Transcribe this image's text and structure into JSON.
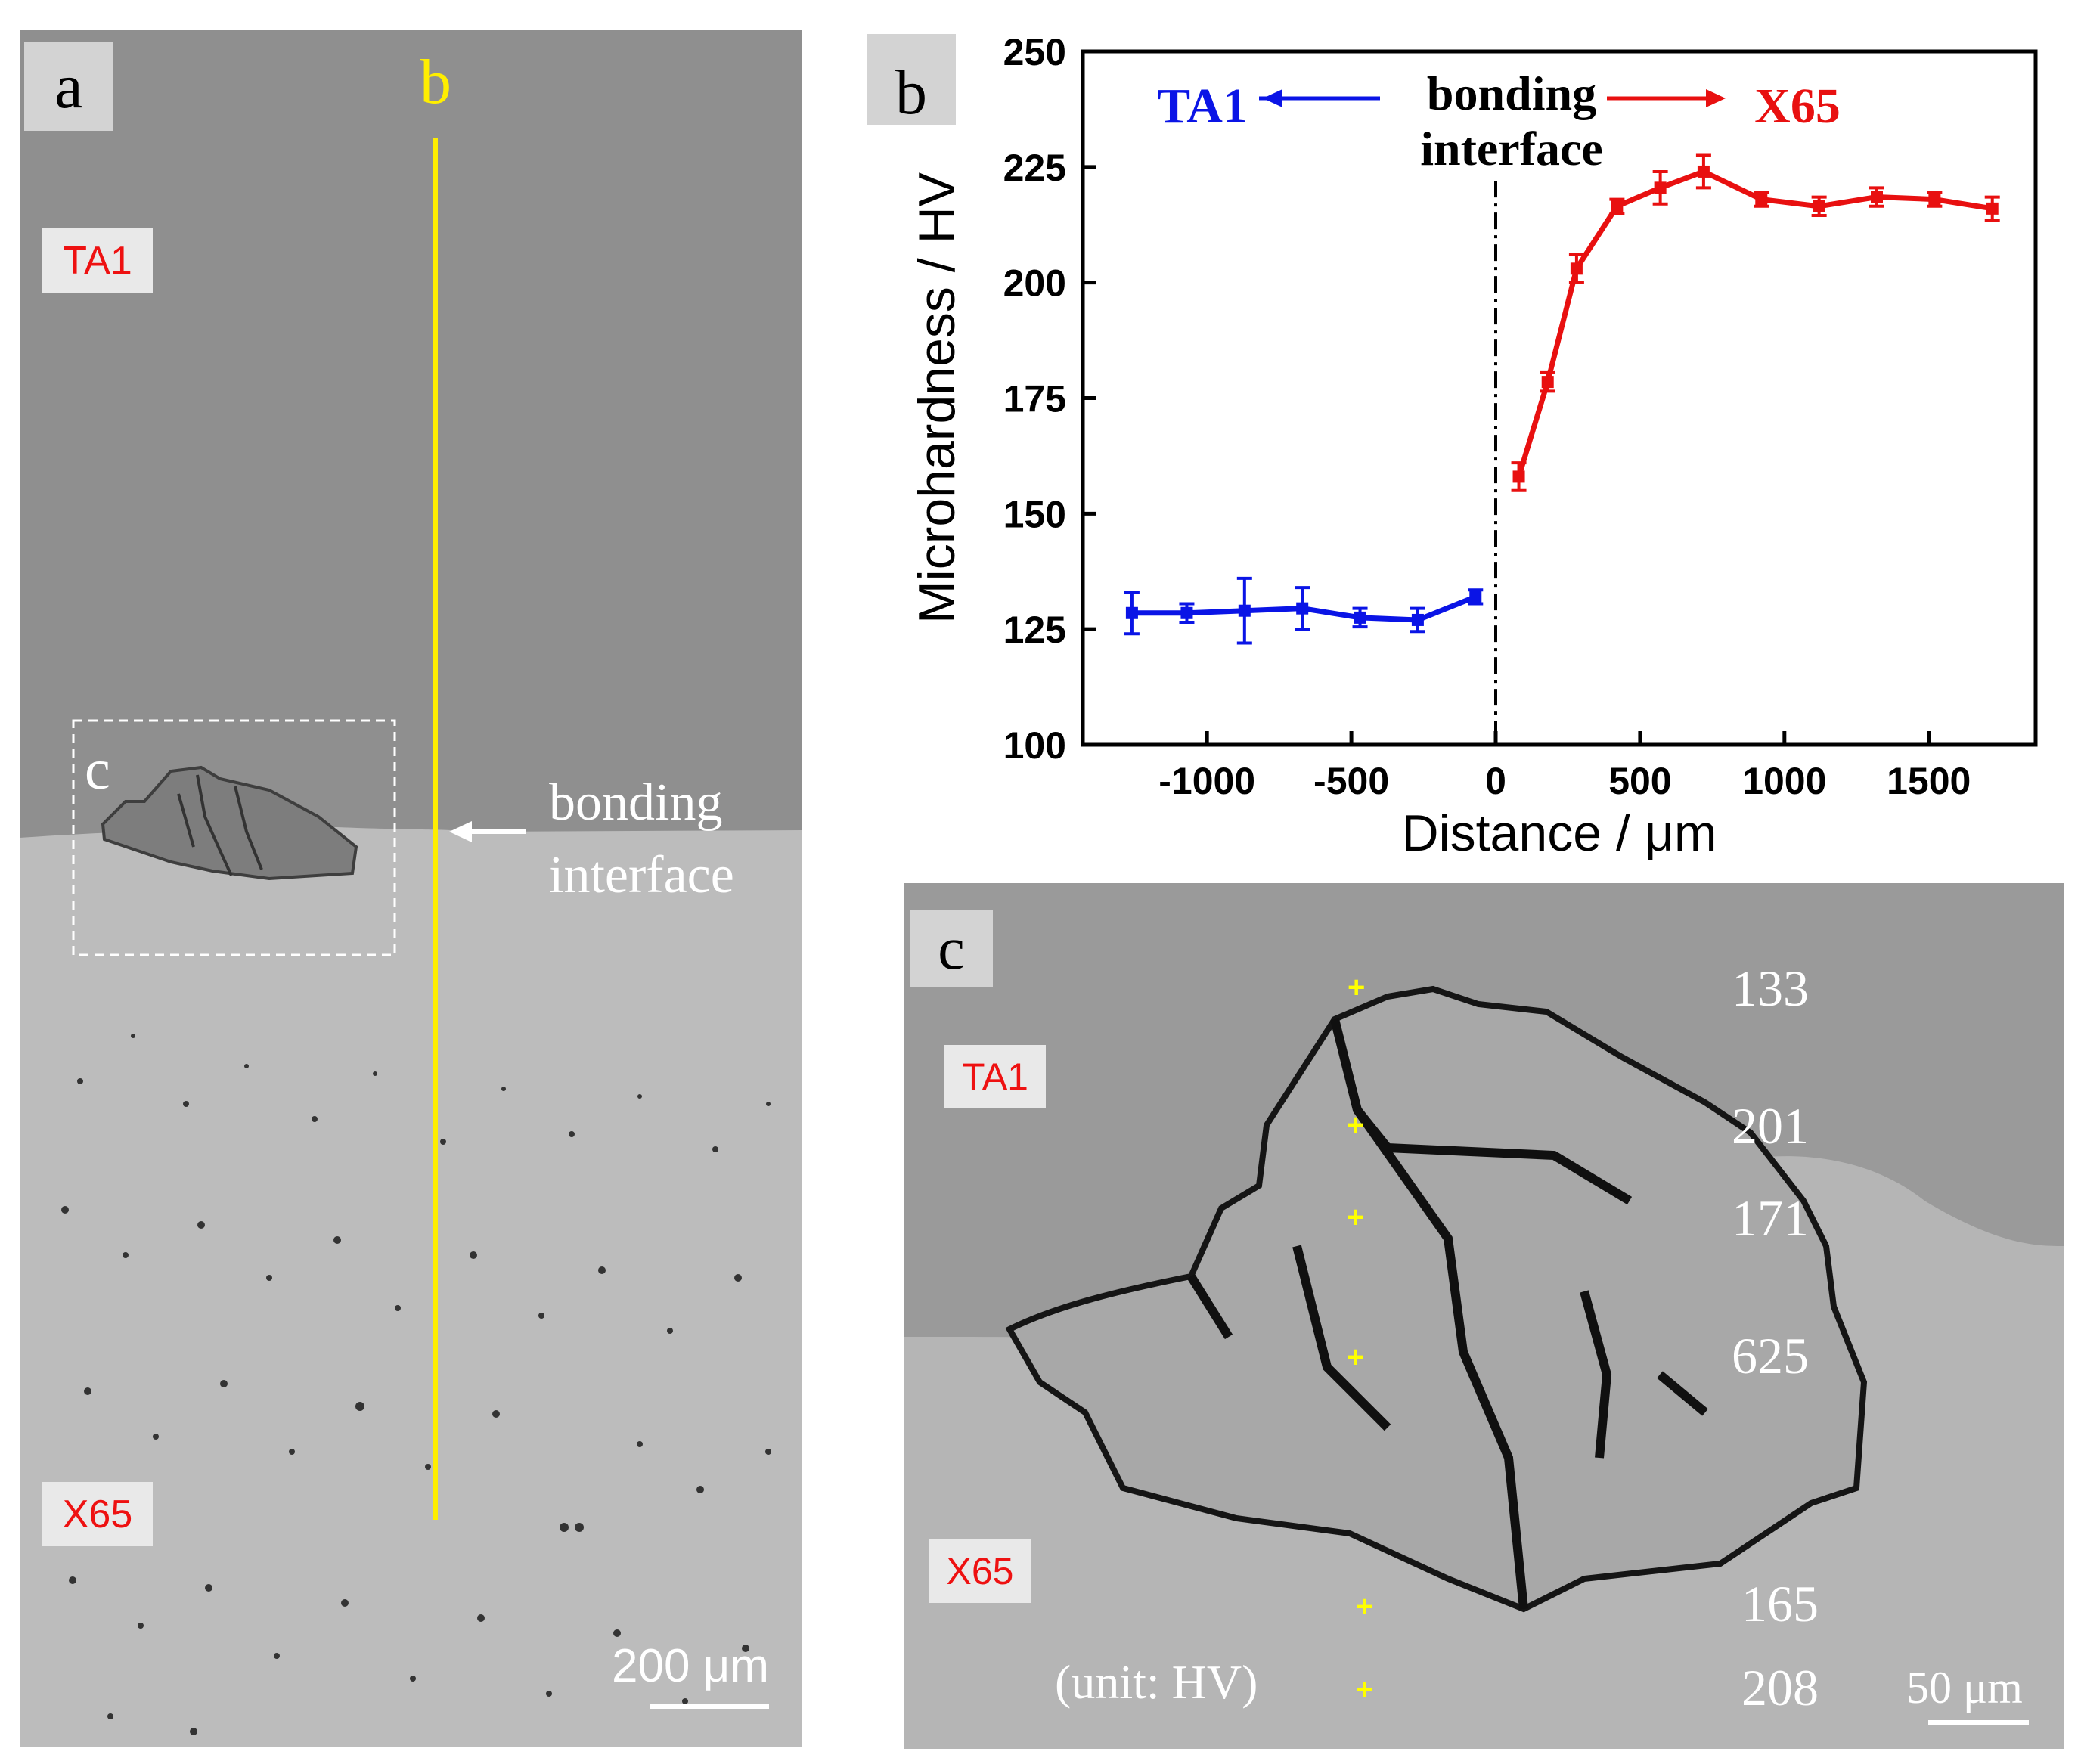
{
  "panel_a": {
    "label": "a",
    "line_label": "b",
    "region_top": "TA1",
    "region_bottom": "X65",
    "inset_label": "c",
    "interface_label_line1": "bonding",
    "interface_label_line2": "interface",
    "scale_bar": "200 μm"
  },
  "panel_c": {
    "label": "c",
    "region_top": "TA1",
    "region_bottom": "X65",
    "unit_note": "(unit: HV)",
    "scale_bar": "50 μm",
    "hardness_points": [
      "133",
      "201",
      "171",
      "625",
      "165",
      "208"
    ]
  },
  "colors": {
    "ta1": "#0a14e6",
    "x65": "#e81010",
    "marker": "#ffff00",
    "yellow_line": "#ffee00"
  },
  "chart_data": {
    "type": "line",
    "panel_label": "b",
    "xlabel": "Distance / μm",
    "ylabel": "Microhardness / HV",
    "xlim": [
      -1430,
      1870
    ],
    "ylim": [
      100,
      250
    ],
    "xticks": [
      -1000,
      -500,
      0,
      500,
      1000,
      1500
    ],
    "yticks": [
      100,
      125,
      150,
      175,
      200,
      225,
      250
    ],
    "annotations": {
      "left": "TA1",
      "middle_line1": "bonding",
      "middle_line2": "interface",
      "right": "X65"
    },
    "interface_x": 0,
    "series": [
      {
        "name": "TA1",
        "color": "#0a14e6",
        "x": [
          -1260,
          -1070,
          -870,
          -670,
          -470,
          -270,
          -70
        ],
        "y": [
          128.5,
          128.5,
          129,
          129.5,
          127.5,
          127,
          132
        ],
        "err": [
          4.5,
          2,
          7,
          4.5,
          2,
          2.5,
          1.5
        ]
      },
      {
        "name": "X65",
        "color": "#e81010",
        "x": [
          80,
          180,
          280,
          420,
          570,
          720,
          920,
          1120,
          1320,
          1520,
          1720
        ],
        "y": [
          158,
          178.5,
          203,
          216.5,
          220.5,
          224,
          218,
          216.5,
          218.5,
          218,
          216
        ],
        "err": [
          3,
          2,
          3,
          1.5,
          3.5,
          3.5,
          1.5,
          2,
          2,
          1.5,
          2.5
        ]
      }
    ]
  }
}
